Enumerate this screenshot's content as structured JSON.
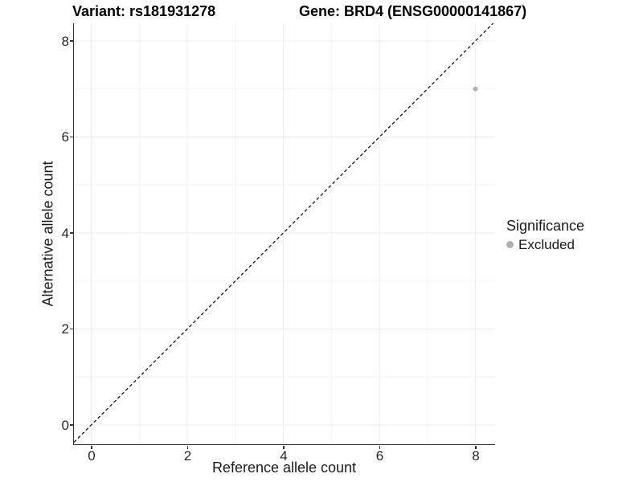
{
  "figure": {
    "title_left": "Variant: rs181931278",
    "title_right": "Gene: BRD4 (ENSG00000141867)"
  },
  "chart_data": {
    "type": "scatter",
    "title": "Variant: rs181931278 | Gene: BRD4 (ENSG00000141867)",
    "xlabel": "Reference allele count",
    "ylabel": "Alternative allele count",
    "xlim": [
      -0.4,
      8.4
    ],
    "ylim": [
      -0.4,
      8.4
    ],
    "x_ticks": [
      0,
      2,
      4,
      6,
      8
    ],
    "y_ticks": [
      0,
      2,
      4,
      6,
      8
    ],
    "minor_gridlines": [
      1,
      3,
      5,
      7
    ],
    "grid": "major and minor light-gray gridlines on white panel",
    "reference_line": {
      "kind": "identity y = x",
      "style": "dashed",
      "color": "#000000"
    },
    "series": [
      {
        "name": "Excluded",
        "marker": "circle",
        "color": "#b0b0b0",
        "points": [
          {
            "x": 8,
            "y": 7
          }
        ]
      }
    ],
    "legend": {
      "title": "Significance",
      "position": "right",
      "entries": [
        {
          "label": "Excluded",
          "color": "#b0b0b0"
        }
      ]
    }
  },
  "colors": {
    "background": "#ffffff",
    "axis_line": "#333333",
    "tick_text": "#262626",
    "grid_major": "#ececec",
    "grid_minor": "#f4f4f4",
    "dashed_line": "#000000",
    "point": "#b0b0b0",
    "title_text": "#000000"
  }
}
